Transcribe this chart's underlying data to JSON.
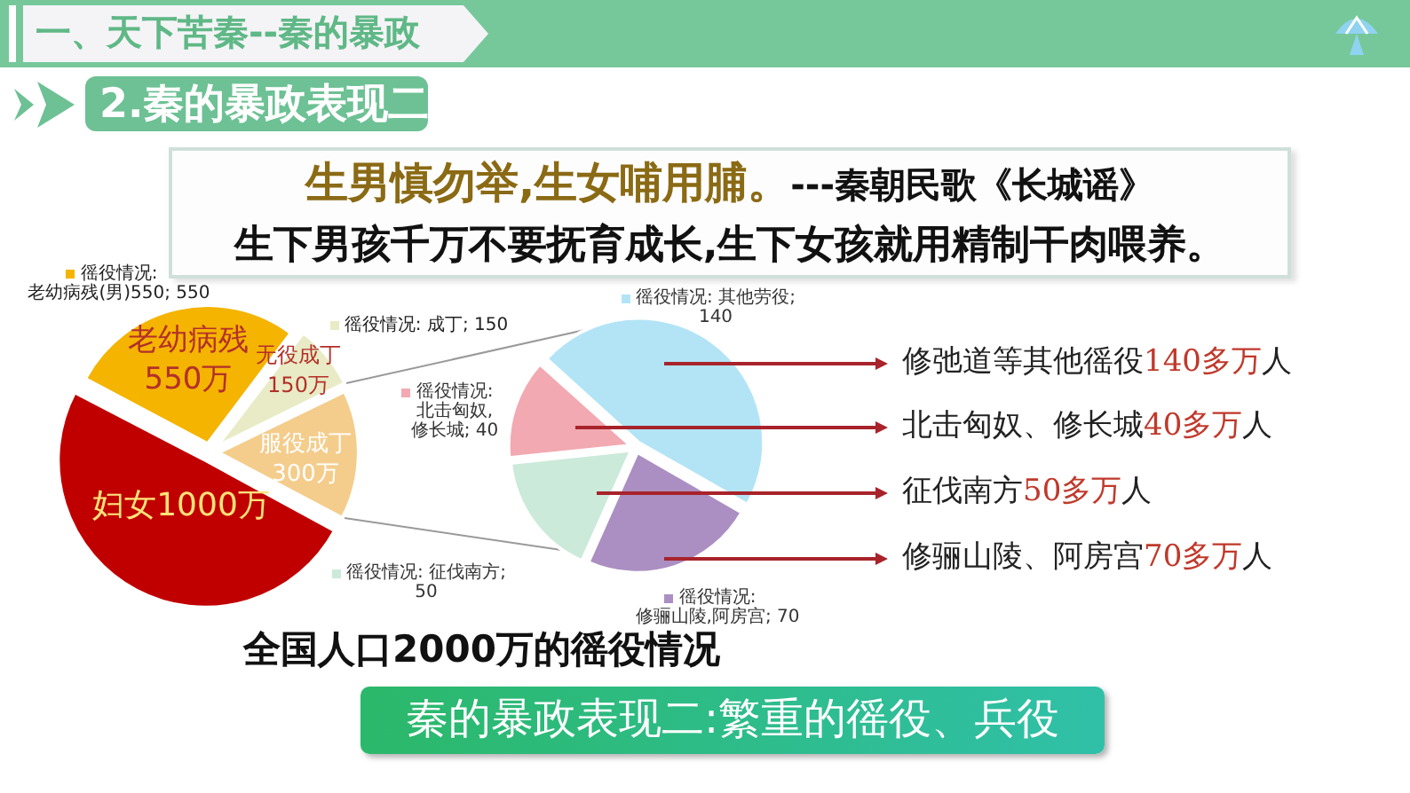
{
  "chart_data": [
    {
      "type": "pie",
      "title": "全国人口2000万的徭役情况",
      "categories": [
        "老幼病残",
        "无役成丁",
        "服役成丁",
        "妇女"
      ],
      "values": [
        550,
        150,
        300,
        1000
      ],
      "colors": [
        "#f4b400",
        "#e8ebc5",
        "#f4cd8c",
        "#c00000"
      ],
      "value_labels": [
        "550万",
        "150万",
        "300万",
        "1000万"
      ],
      "annotations": [
        "徭役情况:\n老幼病残(男)550; 550",
        "徭役情况: 成丁; 150",
        "一、天下苦秦--秦的暴政",
        "2.秦的暴政表现二",
        "生男慎勿举,生女哺用脯。",
        "---秦朝民歌《长城谣》",
        "生下男孩千万不要抚育成长,生下女孩就用精制干肉喂养。",
        "秦的暴政表现二:繁重的徭役、兵役"
      ]
    },
    {
      "type": "pie",
      "categories": [
        null,
        null,
        null,
        null
      ],
      "values": [
        140,
        70,
        50,
        40
      ],
      "colors": [
        "#b3e4f6",
        "#ab8fc2",
        "#cbead9",
        "#f2a9b1"
      ],
      "value_labels": [
        "徭役情况: 其他劳役;\n140",
        "徭役情况:\n修骊山陵,阿房宫; 70",
        "徭役情况: 征伐南方;\n50",
        "徭役情况:\n北击匈奴,修长城; 40"
      ],
      "annotations": [
        "修弛道等其他徭役140多万人",
        "北击匈奴、修长城40多万人",
        "征伐南方50多万人",
        "修骊山陵、阿房宫70多万人"
      ]
    }
  ]
}
